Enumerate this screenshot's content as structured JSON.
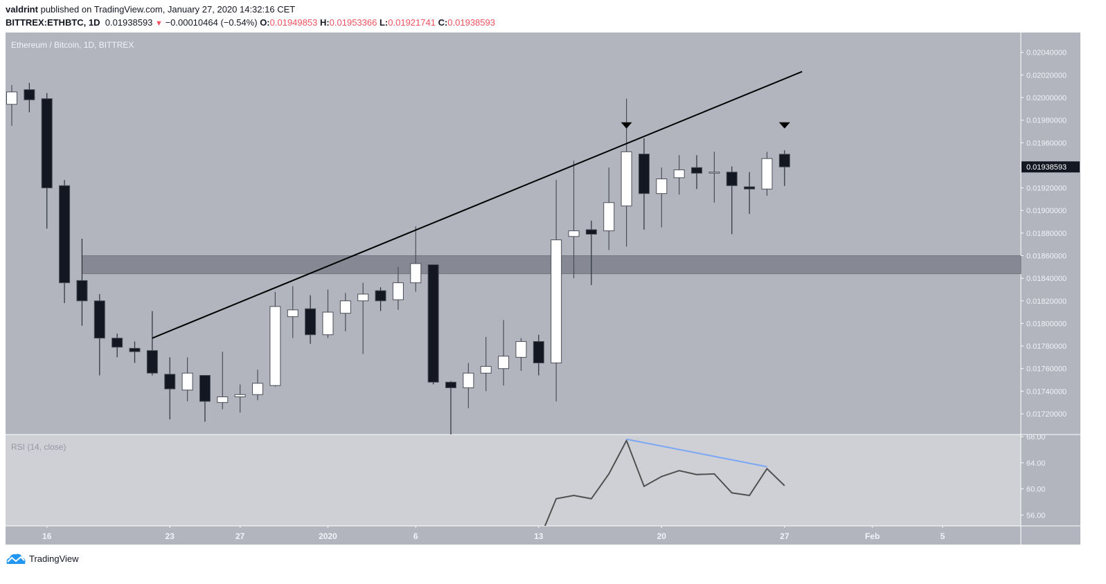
{
  "header": {
    "author": "valdrint",
    "published_text": "published on TradingView.com, January 27, 2020 14:32:16 CET",
    "symbol": "BITTREX:ETHBTC, 1D",
    "last_price": "0.01938593",
    "change_icon": "triangle-down-icon",
    "change": "−0.00010464 (−0.54%)",
    "o_label": "O:",
    "o_value": "0.01949853",
    "h_label": "H:",
    "h_value": "0.01953366",
    "l_label": "L:",
    "l_value": "0.01921741",
    "c_label": "C:",
    "c_value": "0.01938593"
  },
  "pane_title": "Ethereum / Bitcoin, 1D, BITTREX",
  "rsi_title": "RSI (14, close)",
  "footer": {
    "logo_text": "TradingView",
    "logo_icon": "tradingview-cloud-icon"
  },
  "colors": {
    "background": "#b2b5be",
    "rsi_background": "#cfd0d5",
    "up_body": "#ffffff",
    "down_body": "#131722",
    "wick": "#4a4d57",
    "zone": "#868993",
    "trendline": "#000000",
    "rsi_line": "#505050",
    "divergence_line": "#7aa7f5",
    "accent_text_red": "#f0525e"
  },
  "chart_data": [
    {
      "type": "candlestick",
      "title": "Ethereum / Bitcoin, 1D, BITTREX",
      "ylim": [
        0.017,
        0.0205
      ],
      "y_ticks": [
        "0.02040000",
        "0.02020000",
        "0.02000000",
        "0.01980000",
        "0.01960000",
        "0.01920000",
        "0.01900000",
        "0.01880000",
        "0.01860000",
        "0.01840000",
        "0.01820000",
        "0.01800000",
        "0.01780000",
        "0.01760000",
        "0.01740000",
        "0.01720000"
      ],
      "y_tick_values": [
        0.0204,
        0.0202,
        0.02,
        0.0198,
        0.0196,
        0.0192,
        0.019,
        0.0188,
        0.0186,
        0.0184,
        0.0182,
        0.018,
        0.0178,
        0.0176,
        0.0174,
        0.0172
      ],
      "current_price_label": "0.01938593",
      "current_price": 0.01938593,
      "x_ticks": [
        {
          "date": "2019-12-16",
          "label": "16"
        },
        {
          "date": "2019-12-23",
          "label": "23"
        },
        {
          "date": "2019-12-27",
          "label": "27"
        },
        {
          "date": "2020-01-01",
          "label": "2020"
        },
        {
          "date": "2020-01-06",
          "label": "6"
        },
        {
          "date": "2020-01-13",
          "label": "13"
        },
        {
          "date": "2020-01-20",
          "label": "20"
        },
        {
          "date": "2020-01-27",
          "label": "27"
        },
        {
          "date": "2020-02-01",
          "label": "Feb"
        },
        {
          "date": "2020-02-05",
          "label": "5"
        }
      ],
      "x_range": [
        "2019-12-14",
        "2020-02-10"
      ],
      "candle_fields": [
        "date",
        "open",
        "high",
        "low",
        "close"
      ],
      "candles": [
        [
          "2019-12-14",
          0.01994,
          0.02011,
          0.01975,
          0.02005
        ],
        [
          "2019-12-15",
          0.02007,
          0.02013,
          0.01987,
          0.01998
        ],
        [
          "2019-12-16",
          0.01999,
          0.02004,
          0.01884,
          0.0192
        ],
        [
          "2019-12-17",
          0.01922,
          0.01927,
          0.01818,
          0.01836
        ],
        [
          "2019-12-18",
          0.01838,
          0.01875,
          0.01798,
          0.0182
        ],
        [
          "2019-12-19",
          0.0182,
          0.01826,
          0.01754,
          0.01787
        ],
        [
          "2019-12-20",
          0.01787,
          0.01791,
          0.0177,
          0.01779
        ],
        [
          "2019-12-21",
          0.01778,
          0.01784,
          0.01765,
          0.01775
        ],
        [
          "2019-12-22",
          0.01776,
          0.01811,
          0.01754,
          0.01756
        ],
        [
          "2019-12-23",
          0.01755,
          0.0177,
          0.01715,
          0.01742
        ],
        [
          "2019-12-24",
          0.01741,
          0.0177,
          0.01731,
          0.01756
        ],
        [
          "2019-12-25",
          0.01754,
          0.01754,
          0.01713,
          0.01731
        ],
        [
          "2019-12-26",
          0.0173,
          0.01775,
          0.01724,
          0.01735
        ],
        [
          "2019-12-27",
          0.01735,
          0.01746,
          0.01721,
          0.01737
        ],
        [
          "2019-12-28",
          0.01737,
          0.01759,
          0.01732,
          0.01747
        ],
        [
          "2019-12-29",
          0.01745,
          0.01828,
          0.01744,
          0.01815
        ],
        [
          "2019-12-30",
          0.01806,
          0.01833,
          0.01787,
          0.01812
        ],
        [
          "2019-12-31",
          0.01813,
          0.01825,
          0.01782,
          0.0179
        ],
        [
          "2020-01-01",
          0.0179,
          0.0183,
          0.01787,
          0.0181
        ],
        [
          "2020-01-02",
          0.01809,
          0.01827,
          0.01793,
          0.0182
        ],
        [
          "2020-01-03",
          0.0182,
          0.01836,
          0.01773,
          0.01826
        ],
        [
          "2020-01-04",
          0.01829,
          0.01832,
          0.01811,
          0.0182
        ],
        [
          "2020-01-05",
          0.01821,
          0.0185,
          0.01812,
          0.01836
        ],
        [
          "2020-01-06",
          0.01836,
          0.01886,
          0.01828,
          0.01853
        ],
        [
          "2020-01-07",
          0.01852,
          0.01852,
          0.01746,
          0.01748
        ],
        [
          "2020-01-08",
          0.01748,
          0.01749,
          0.017,
          0.01743
        ],
        [
          "2020-01-09",
          0.01743,
          0.01765,
          0.01725,
          0.01756
        ],
        [
          "2020-01-10",
          0.01756,
          0.01788,
          0.0174,
          0.01762
        ],
        [
          "2020-01-11",
          0.0176,
          0.01803,
          0.01745,
          0.01771
        ],
        [
          "2020-01-12",
          0.0177,
          0.01787,
          0.01758,
          0.01784
        ],
        [
          "2020-01-13",
          0.01784,
          0.0179,
          0.01754,
          0.01765
        ],
        [
          "2020-01-14",
          0.01765,
          0.01927,
          0.01731,
          0.01874
        ],
        [
          "2020-01-15",
          0.01877,
          0.01944,
          0.0184,
          0.01882
        ],
        [
          "2020-01-16",
          0.01883,
          0.01891,
          0.01834,
          0.01879
        ],
        [
          "2020-01-17",
          0.01882,
          0.01938,
          0.01865,
          0.01907
        ],
        [
          "2020-01-18",
          0.01904,
          0.01999,
          0.01868,
          0.01952
        ],
        [
          "2020-01-19",
          0.0195,
          0.01964,
          0.01883,
          0.01915
        ],
        [
          "2020-01-20",
          0.01915,
          0.01938,
          0.01885,
          0.01928
        ],
        [
          "2020-01-21",
          0.01929,
          0.01949,
          0.01914,
          0.01936
        ],
        [
          "2020-01-22",
          0.01938,
          0.01949,
          0.01919,
          0.01933
        ],
        [
          "2020-01-23",
          0.01934,
          0.01952,
          0.01907,
          0.01934
        ],
        [
          "2020-01-24",
          0.01934,
          0.01939,
          0.01879,
          0.01922
        ],
        [
          "2020-01-25",
          0.01921,
          0.01934,
          0.01897,
          0.01919
        ],
        [
          "2020-01-26",
          0.01919,
          0.01952,
          0.01913,
          0.01946
        ],
        [
          "2020-01-27",
          0.01949853,
          0.01953366,
          0.01921741,
          0.01938593
        ]
      ],
      "annotations": {
        "zone": {
          "from_date": "2019-12-18",
          "price_low": 0.01844,
          "price_high": 0.0186
        },
        "trendline": [
          [
            "2019-12-22",
            0.01787
          ],
          [
            "2020-01-28",
            0.02023
          ]
        ],
        "arrows_down": [
          [
            "2020-01-18",
            0.01975
          ],
          [
            "2020-01-27",
            0.01975
          ]
        ]
      }
    },
    {
      "type": "line",
      "title": "RSI (14, close)",
      "ylim": [
        54.8,
        68.3
      ],
      "y_ticks": [
        "68.00",
        "64.00",
        "60.00",
        "56.00"
      ],
      "y_tick_values": [
        68,
        64,
        60,
        56
      ],
      "points": [
        [
          "2020-01-13",
          52.0
        ],
        [
          "2020-01-14",
          58.5
        ],
        [
          "2020-01-15",
          59.0
        ],
        [
          "2020-01-16",
          58.5
        ],
        [
          "2020-01-17",
          62.3
        ],
        [
          "2020-01-18",
          67.4
        ],
        [
          "2020-01-19",
          60.4
        ],
        [
          "2020-01-20",
          61.9
        ],
        [
          "2020-01-21",
          62.8
        ],
        [
          "2020-01-22",
          62.2
        ],
        [
          "2020-01-23",
          62.3
        ],
        [
          "2020-01-24",
          59.4
        ],
        [
          "2020-01-25",
          59.0
        ],
        [
          "2020-01-26",
          63.1
        ],
        [
          "2020-01-27",
          60.5
        ]
      ],
      "divergence_line": [
        [
          "2020-01-18",
          67.6
        ],
        [
          "2020-01-26",
          63.4
        ]
      ]
    }
  ]
}
